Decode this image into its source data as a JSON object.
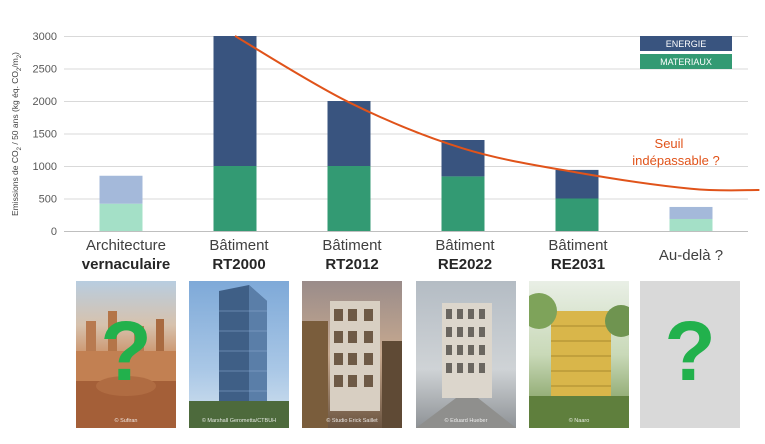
{
  "chart_data": {
    "type": "bar",
    "stacked": true,
    "categories": [
      {
        "line1": "Architecture",
        "line2": "vernaculaire"
      },
      {
        "line1": "Bâtiment",
        "line2": "RT2000"
      },
      {
        "line1": "Bâtiment",
        "line2": "RT2012"
      },
      {
        "line1": "Bâtiment",
        "line2": "RE2022"
      },
      {
        "line1": "Bâtiment",
        "line2": "RE2031"
      },
      {
        "line1": "Au-delà ?",
        "line2": ""
      }
    ],
    "series": [
      {
        "name": "MATERIAUX",
        "values": [
          420,
          1000,
          1000,
          840,
          500,
          185
        ],
        "color": "#339a73",
        "color_faded": "#a4e0c7"
      },
      {
        "name": "ENERGIE",
        "values": [
          430,
          2000,
          1000,
          560,
          440,
          185
        ],
        "color": "#39547f",
        "color_faded": "#a4b9da"
      }
    ],
    "faded_categories": [
      0,
      5
    ],
    "threshold": {
      "label_line1": "Seuil",
      "label_line2": "indépassable ?",
      "color": "#e0531a",
      "points": [
        [
          1,
          3000
        ],
        [
          2,
          1980
        ],
        [
          3,
          1270
        ],
        [
          4,
          900
        ],
        [
          5,
          650
        ],
        [
          5.6,
          630
        ]
      ]
    },
    "ylabel_parts": [
      "Emissions de CO",
      "2",
      " / 50 ans (kg éq. CO",
      "2",
      "/m",
      "2",
      ")"
    ],
    "ylim": [
      0,
      3000
    ],
    "yticks": [
      0,
      500,
      1000,
      1500,
      2000,
      2500,
      3000
    ],
    "grid": true,
    "legend_position": "top-right",
    "legend_colors": {
      "ENERGIE": "#39547f",
      "MATERIAUX": "#339a73"
    }
  },
  "photos": [
    {
      "name": "photo-vernaculaire",
      "credit": "© Sufiran",
      "question_mark": "?"
    },
    {
      "name": "photo-rt2000",
      "credit": "© Marshall Gerometta/CTBUH",
      "question_mark": ""
    },
    {
      "name": "photo-rt2012",
      "credit": "© Studio Erick Saillet",
      "question_mark": ""
    },
    {
      "name": "photo-re2022",
      "credit": "© Eduard Hueber",
      "question_mark": ""
    },
    {
      "name": "photo-re2031",
      "credit": "© Naaro",
      "question_mark": ""
    },
    {
      "name": "photo-au-dela",
      "credit": "",
      "question_mark": "?"
    }
  ]
}
